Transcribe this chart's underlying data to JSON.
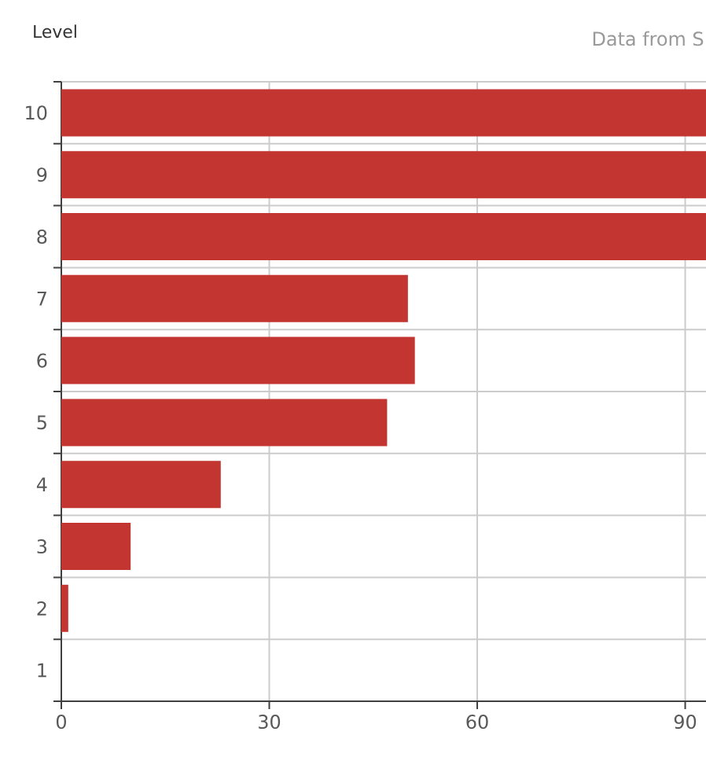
{
  "chart_data": {
    "type": "bar",
    "orientation": "horizontal",
    "subtitle": "Data from S",
    "ylabel": "Level",
    "categories": [
      "10",
      "9",
      "8",
      "7",
      "6",
      "5",
      "4",
      "3",
      "2",
      "1"
    ],
    "values": [
      93,
      93,
      93,
      50,
      51,
      47,
      23,
      10,
      1,
      0
    ],
    "color": "#c23531",
    "xlim": [
      0,
      93
    ],
    "xticks": [
      0,
      30,
      60,
      90
    ],
    "grid": true
  }
}
